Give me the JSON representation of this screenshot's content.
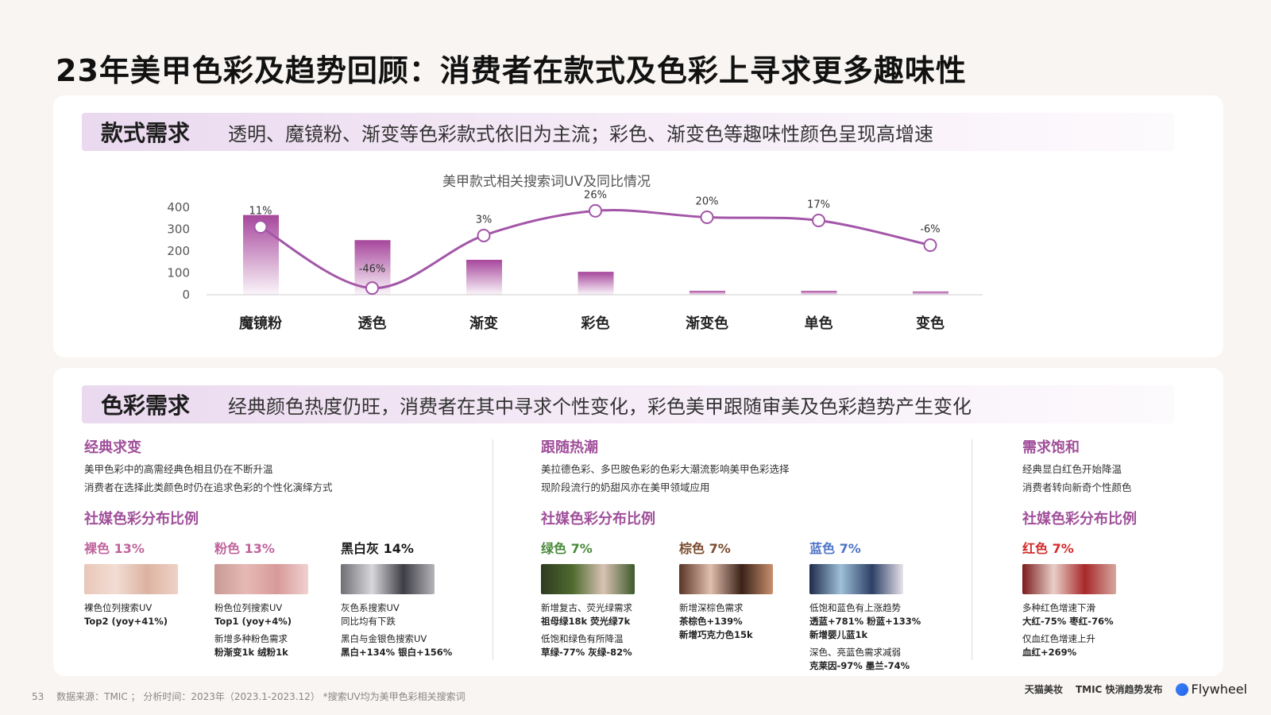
{
  "page": {
    "title": "23年美甲色彩及趋势回顾：消费者在款式及色彩上寻求更多趣味性"
  },
  "style_section": {
    "tag": "款式需求",
    "desc": "透明、魔镜粉、渐变等色彩款式依旧为主流；彩色、渐变色等趣味性颜色呈现高增速"
  },
  "chart_data": {
    "type": "bar",
    "title": "美甲款式相关搜索词UV及同比情况",
    "categories": [
      "魔镜粉",
      "透色",
      "渐变",
      "彩色",
      "渐变色",
      "单色",
      "变色"
    ],
    "series": [
      {
        "values": [
          365,
          250,
          160,
          105,
          18,
          18,
          15
        ]
      }
    ],
    "yoy_line": {
      "labels": [
        "11%",
        "-46%",
        "3%",
        "26%",
        "20%",
        "17%",
        "-6%"
      ],
      "values": [
        11,
        -46,
        3,
        26,
        20,
        17,
        -6
      ]
    },
    "yticks": [
      "0",
      "100",
      "200",
      "300",
      "400"
    ],
    "ylim": [
      0,
      400
    ],
    "yoy_range": [
      -50,
      30
    ],
    "colors": {
      "bar": "#a23d97",
      "line": "#a356a8"
    }
  },
  "color_section": {
    "tag": "色彩需求",
    "desc": "经典颜色热度仍旺，消费者在其中寻求个性变化，彩色美甲跟随审美及色彩趋势产生变化"
  },
  "col1": {
    "title": "经典求变",
    "lines": [
      "美甲色彩中的高需经典色相且仍在不断升温",
      "消费者在选择此类颜色时仍在追求色彩的个性化演绎方式"
    ],
    "sub_title": "社媒色彩分布比例",
    "items": [
      {
        "label": "裸色 13%",
        "color": "#c0649c",
        "n1": "裸色位列搜索UV",
        "n2": "Top2 (yoy+41%)"
      },
      {
        "label": "粉色 13%",
        "color": "#c0649c",
        "n1": "粉色位列搜索UV",
        "n2": "Top1 (yoy+4%)",
        "n3": "新增多种粉色需求",
        "n4": "粉渐变1k  绒粉1k"
      },
      {
        "label": "黑白灰 14%",
        "color": "#1a1a1a",
        "n1": "灰色系搜索UV",
        "n2": "同比均有下跌",
        "n3": "黑白与金银色搜索UV",
        "n4": "黑白+134%  银白+156%"
      }
    ]
  },
  "col2": {
    "title": "跟随热潮",
    "lines": [
      "美拉德色彩、多巴胺色彩的色彩大潮流影响美甲色彩选择",
      "现阶段流行的奶甜风亦在美甲领域应用"
    ],
    "sub_title": "社媒色彩分布比例",
    "items": [
      {
        "label": "绿色 7%",
        "color": "#4a8a3c",
        "n1": "新增复古、荧光绿需求",
        "n2": "祖母绿18k  荧光绿7k",
        "n3": "低饱和绿色有所降温",
        "n4": "草绿-77%  灰绿-82%"
      },
      {
        "label": "棕色 7%",
        "color": "#7a4a2e",
        "n1": "新增深棕色需求",
        "n2": "茶棕色+139%",
        "n3": "新增巧克力色15k"
      },
      {
        "label": "蓝色 7%",
        "color": "#4f74c7",
        "n1": "低饱和蓝色有上涨趋势",
        "n2": "透蓝+781%  粉蓝+133%",
        "n3": "新增婴儿蓝1k",
        "n4": "深色、亮蓝色需求减弱",
        "n5": "克莱因-97%  墨兰-74%"
      }
    ]
  },
  "col3": {
    "title": "需求饱和",
    "lines": [
      "经典显白红色开始降温",
      "消费者转向新奇个性颜色"
    ],
    "sub_title": "社媒色彩分布比例",
    "items": [
      {
        "label": "红色 7%",
        "color": "#d42b2b",
        "n1": "多种红色增速下滑",
        "n2": "大红-75%  枣红-76%",
        "n3": "仅血红色增速上升",
        "n4": "血红+269%"
      }
    ]
  },
  "footer": {
    "page_num": "53",
    "source": "数据来源：TMIC ； 分析时间：2023年（2023.1-2023.12）   *搜索UV均为美甲色彩相关搜索词"
  },
  "logos": {
    "tmall": "天猫美妆",
    "tmic": "TMIC 快消趋势发布",
    "flywheel": "Flywheel"
  }
}
